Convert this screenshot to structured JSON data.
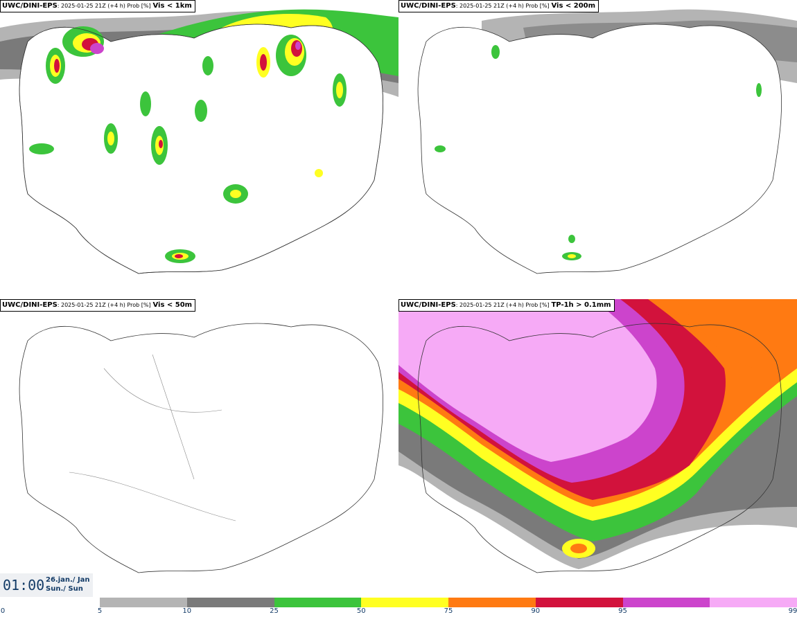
{
  "panels": [
    {
      "model": "UWC/DINI-EPS",
      "meta": ": 2025-01-25 21Z (+4 h) Prob [%]",
      "field": "Vis < 1km"
    },
    {
      "model": "UWC/DINI-EPS",
      "meta": ": 2025-01-25 21Z (+4 h) Prob [%]",
      "field": "Vis < 200m"
    },
    {
      "model": "UWC/DINI-EPS",
      "meta": ": 2025-01-25 21Z (+4 h) Prob [%]",
      "field": "Vis < 50m"
    },
    {
      "model": "UWC/DINI-EPS",
      "meta": ": 2025-01-25 21Z (+4 h) Prob [%]",
      "field": "TP-1h > 0.1mm"
    }
  ],
  "clock": {
    "time": "01:00",
    "date_line1": "26.jan./ Jan",
    "date_line2": "Sun./ Sun"
  },
  "legend": {
    "colors": [
      "#b4b4b4",
      "#7a7a7a",
      "#3cc43c",
      "#ffff22",
      "#ff7a12",
      "#d2123c",
      "#cc44cc",
      "#f6aaf6"
    ],
    "ticks": [
      "0",
      "5",
      "10",
      "25",
      "50",
      "75",
      "90",
      "95",
      "99"
    ]
  }
}
